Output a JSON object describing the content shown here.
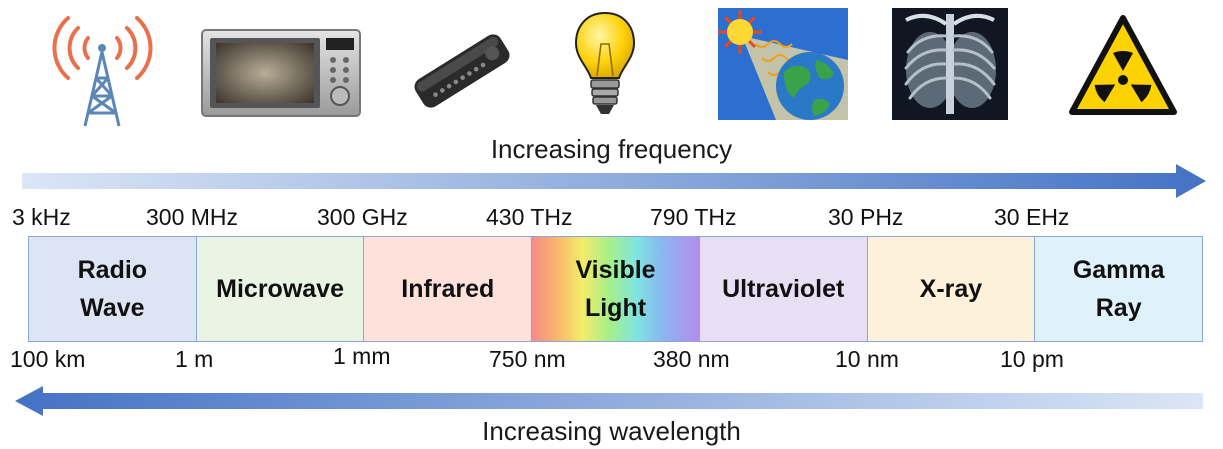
{
  "icons": [
    "radio-tower-icon",
    "microwave-oven-icon",
    "remote-control-icon",
    "light-bulb-icon",
    "sun-earth-uv-icon",
    "chest-xray-icon",
    "radiation-warning-icon"
  ],
  "frequency_arrow": {
    "label": "Increasing frequency",
    "color": "#4472c4",
    "direction": "right"
  },
  "wavelength_arrow": {
    "label": "Increasing wavelength",
    "color": "#4472c4",
    "direction": "left"
  },
  "frequency_ticks": [
    "3 kHz",
    "300 MHz",
    "300 GHz",
    "430 THz",
    "790 THz",
    "30 PHz",
    "30 EHz"
  ],
  "wavelength_ticks": [
    "100 km",
    "1 m",
    "1 mm",
    "750 nm",
    "380 nm",
    "10 nm",
    "10 pm"
  ],
  "bands": [
    {
      "label": "Radio\nWave",
      "color": "#dde5f4"
    },
    {
      "label": "Microwave",
      "color": "#eaf4e4"
    },
    {
      "label": "Infrared",
      "color": "#fde2dc"
    },
    {
      "label": "Visible\nLight",
      "color": "rainbow"
    },
    {
      "label": "Ultraviolet",
      "color": "#e9dff5"
    },
    {
      "label": "X-ray",
      "color": "#fdf1db"
    },
    {
      "label": "Gamma\nRay",
      "color": "#dff2fb"
    }
  ]
}
